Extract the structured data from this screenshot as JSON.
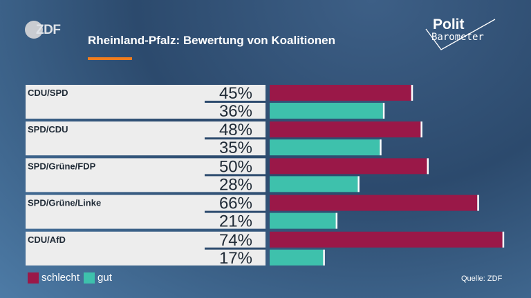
{
  "broadcaster": "ZDF",
  "brand": {
    "line1": "Polit",
    "line2": "Barometer"
  },
  "source": "Quelle: ZDF",
  "colors": {
    "schlecht": "#9a1848",
    "gut": "#3ec1ac",
    "label_bg": "#ededed",
    "accent": "#f07d1e"
  },
  "chart_data": {
    "type": "bar",
    "orientation": "horizontal",
    "title": "Rheinland-Pfalz: Bewertung von Koalitionen",
    "categories": [
      "CDU/SPD",
      "SPD/CDU",
      "SPD/Grüne/FDP",
      "SPD/Grüne/Linke",
      "CDU/AfD"
    ],
    "series": [
      {
        "name": "schlecht",
        "values": [
          45,
          48,
          50,
          66,
          74
        ],
        "labels": [
          "45%",
          "48%",
          "50%",
          "66%",
          "74%"
        ]
      },
      {
        "name": "gut",
        "values": [
          36,
          35,
          28,
          21,
          17
        ],
        "labels": [
          "36%",
          "35%",
          "28%",
          "21%",
          "17%"
        ]
      }
    ],
    "unit": "%",
    "xlim": [
      0,
      100
    ],
    "legend": "bottom-left"
  }
}
